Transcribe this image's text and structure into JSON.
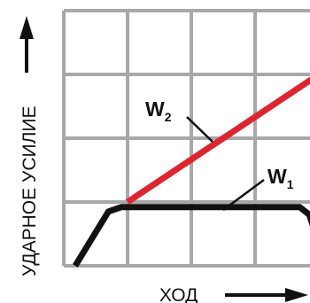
{
  "chart_data": {
    "type": "line",
    "title": "",
    "ylabel": "УДАРНОЕ УСИЛИЕ",
    "xlabel": "ХОД",
    "grid": true,
    "xlim": [
      0,
      4
    ],
    "ylim": [
      0,
      4
    ],
    "series": [
      {
        "name": "W",
        "name_sub": "2",
        "color": "#e0242e",
        "x": [
          1.0,
          4.0
        ],
        "y": [
          1.0,
          3.0
        ]
      },
      {
        "name": "W",
        "name_sub": "1",
        "color": "#111111",
        "x": [
          0.18,
          0.7,
          0.9,
          3.7,
          3.85,
          3.95,
          4.0
        ],
        "y": [
          0.0,
          0.85,
          0.92,
          0.92,
          0.8,
          0.5,
          0.3
        ]
      }
    ]
  },
  "colors": {
    "grid": "#a8a8a8",
    "axis_arrow": "#111111"
  }
}
